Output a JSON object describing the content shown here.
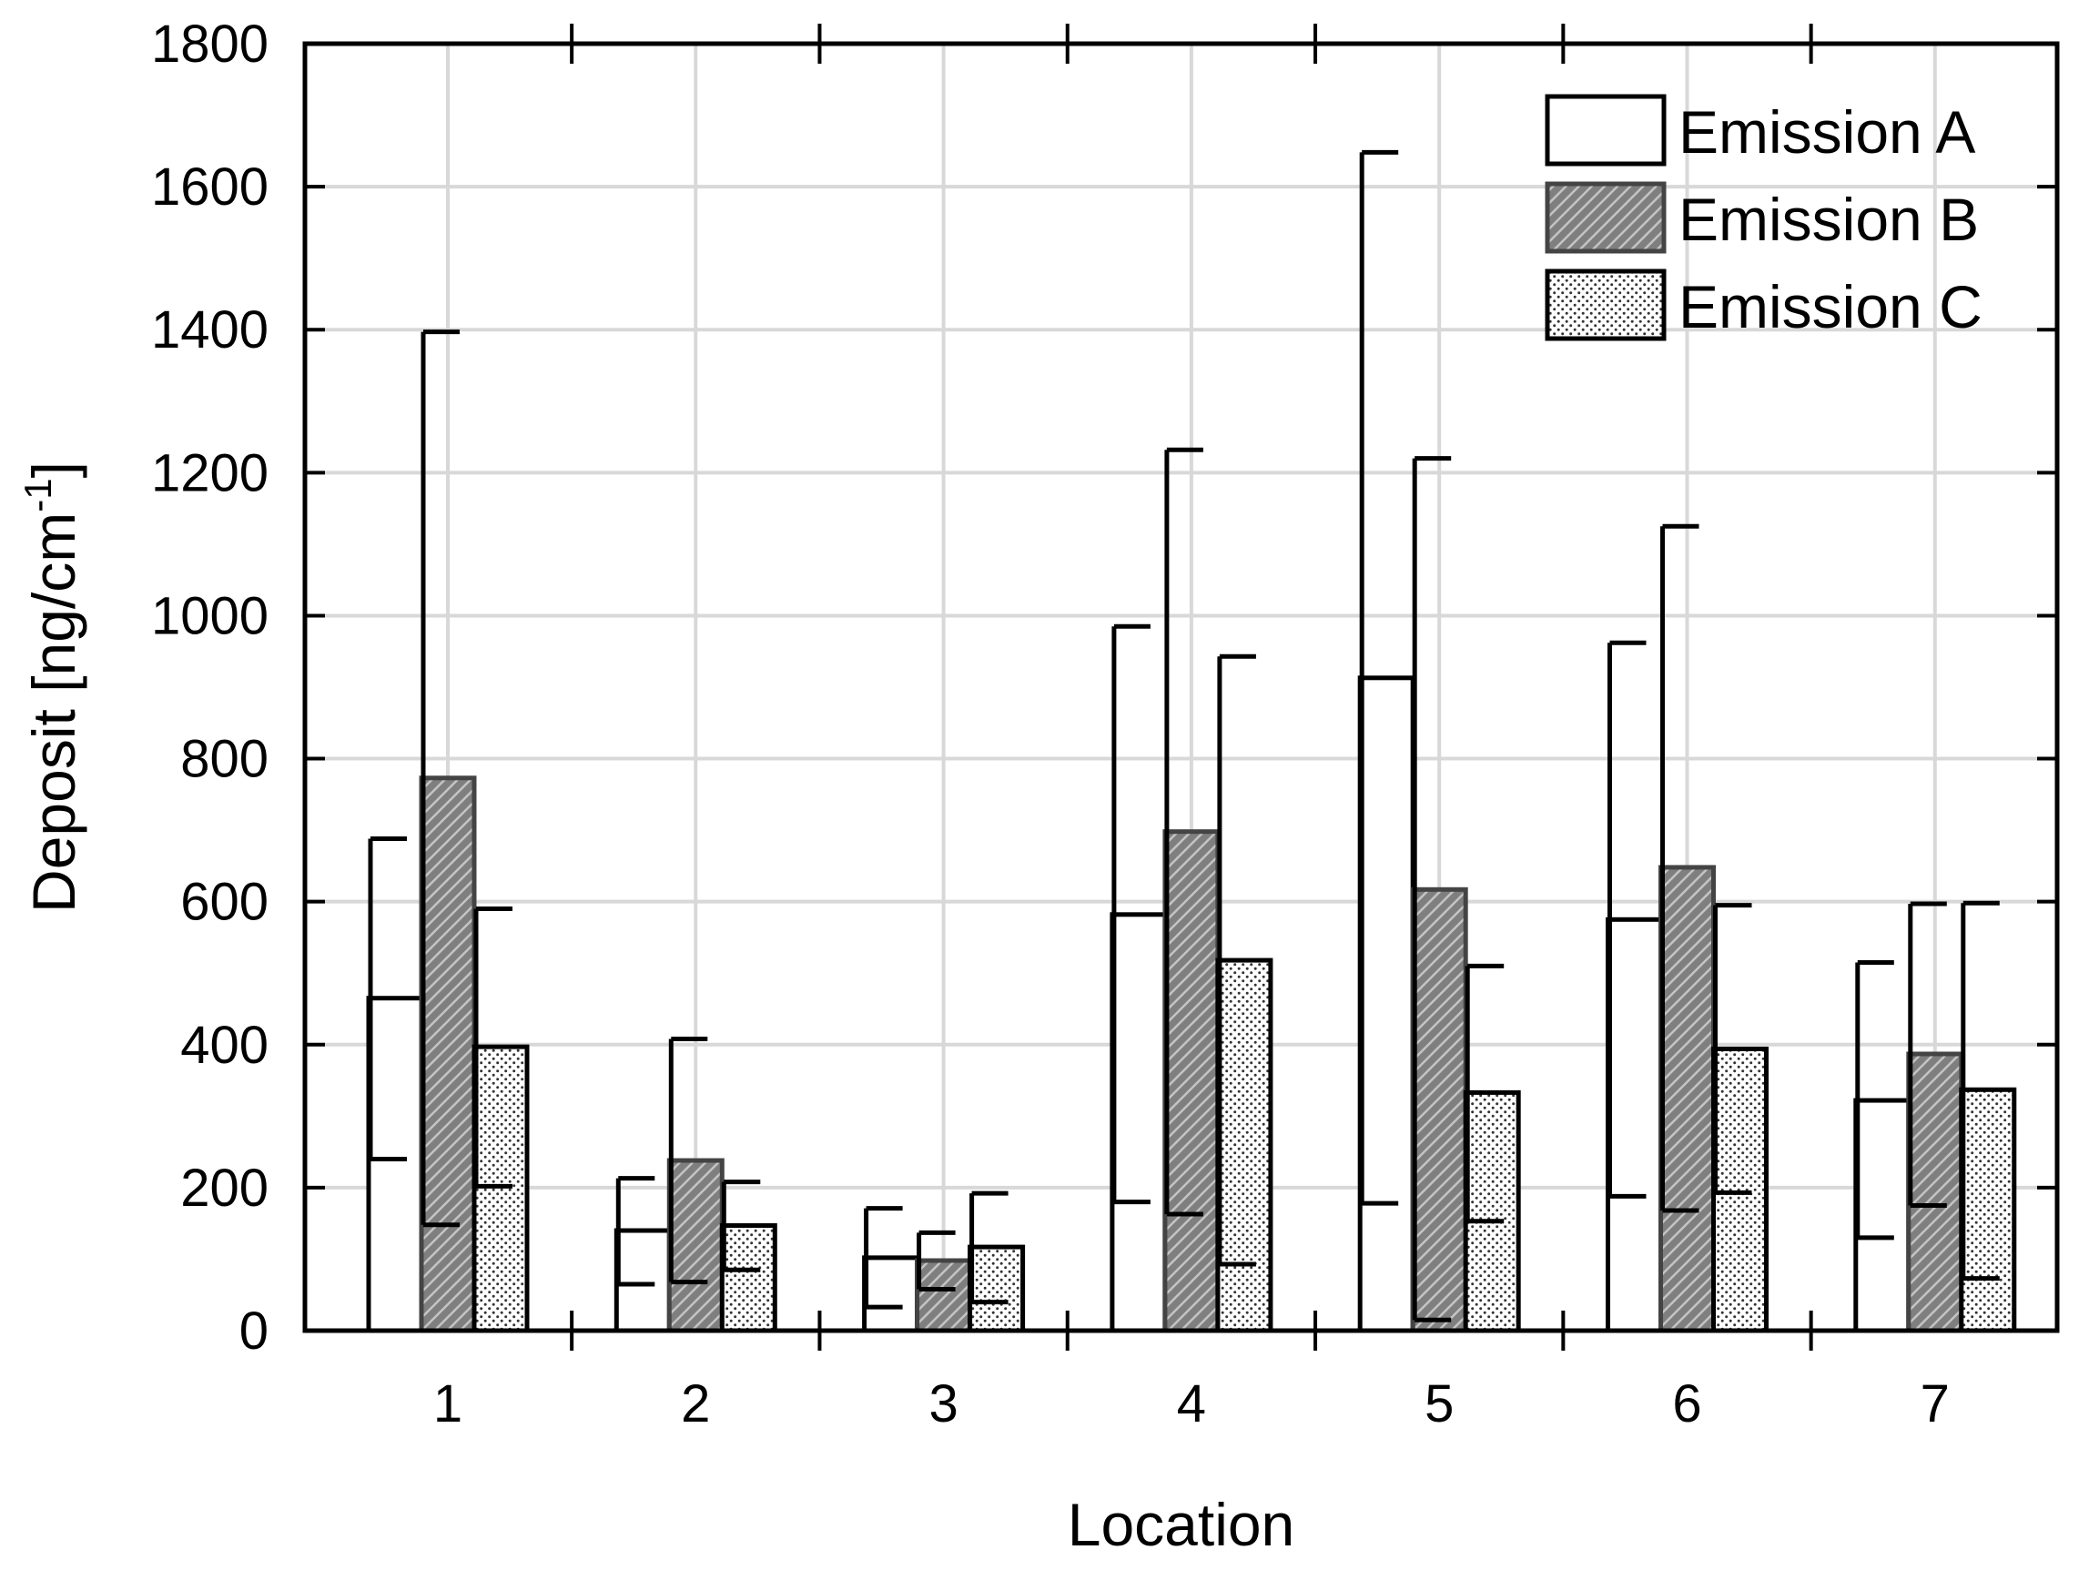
{
  "chart_data": {
    "type": "bar",
    "title": "",
    "xlabel": "Location",
    "ylabel": {
      "main": "Deposit [ng/cm",
      "superscript": "-1",
      "close": "]"
    },
    "ylim": [
      0,
      1800
    ],
    "yticks": [
      "0",
      "200",
      "400",
      "600",
      "800",
      "1000",
      "1200",
      "1400",
      "1600",
      "1800"
    ],
    "categories": [
      "1",
      "2",
      "3",
      "4",
      "5",
      "6",
      "7"
    ],
    "grid": true,
    "legend_position": "top-right",
    "series": [
      {
        "name": "Emission A",
        "pattern": "open",
        "values": [
          465,
          140,
          102,
          582,
          913,
          575,
          322
        ],
        "err_low": [
          240,
          65,
          33,
          180,
          178,
          188,
          130
        ],
        "err_high": [
          688,
          213,
          171,
          985,
          1648,
          962,
          515
        ]
      },
      {
        "name": "Emission B",
        "pattern": "hatched",
        "values": [
          773,
          238,
          98,
          698,
          617,
          648,
          387
        ],
        "err_low": [
          148,
          68,
          58,
          163,
          15,
          168,
          175
        ],
        "err_high": [
          1397,
          408,
          137,
          1232,
          1220,
          1125,
          597
        ]
      },
      {
        "name": "Emission C",
        "pattern": "dotted",
        "values": [
          397,
          147,
          117,
          518,
          333,
          394,
          337
        ],
        "err_low": [
          202,
          85,
          40,
          93,
          153,
          193,
          73
        ],
        "err_high": [
          590,
          208,
          192,
          943,
          510,
          595,
          598
        ]
      }
    ],
    "colors": {
      "frame": "#000000",
      "grid": "#d8d8d8",
      "hatch_fill": "#7f7f7f",
      "hatch_line": "#c4c4c4",
      "hatch_border": "#444444",
      "dot": "#333333"
    }
  }
}
